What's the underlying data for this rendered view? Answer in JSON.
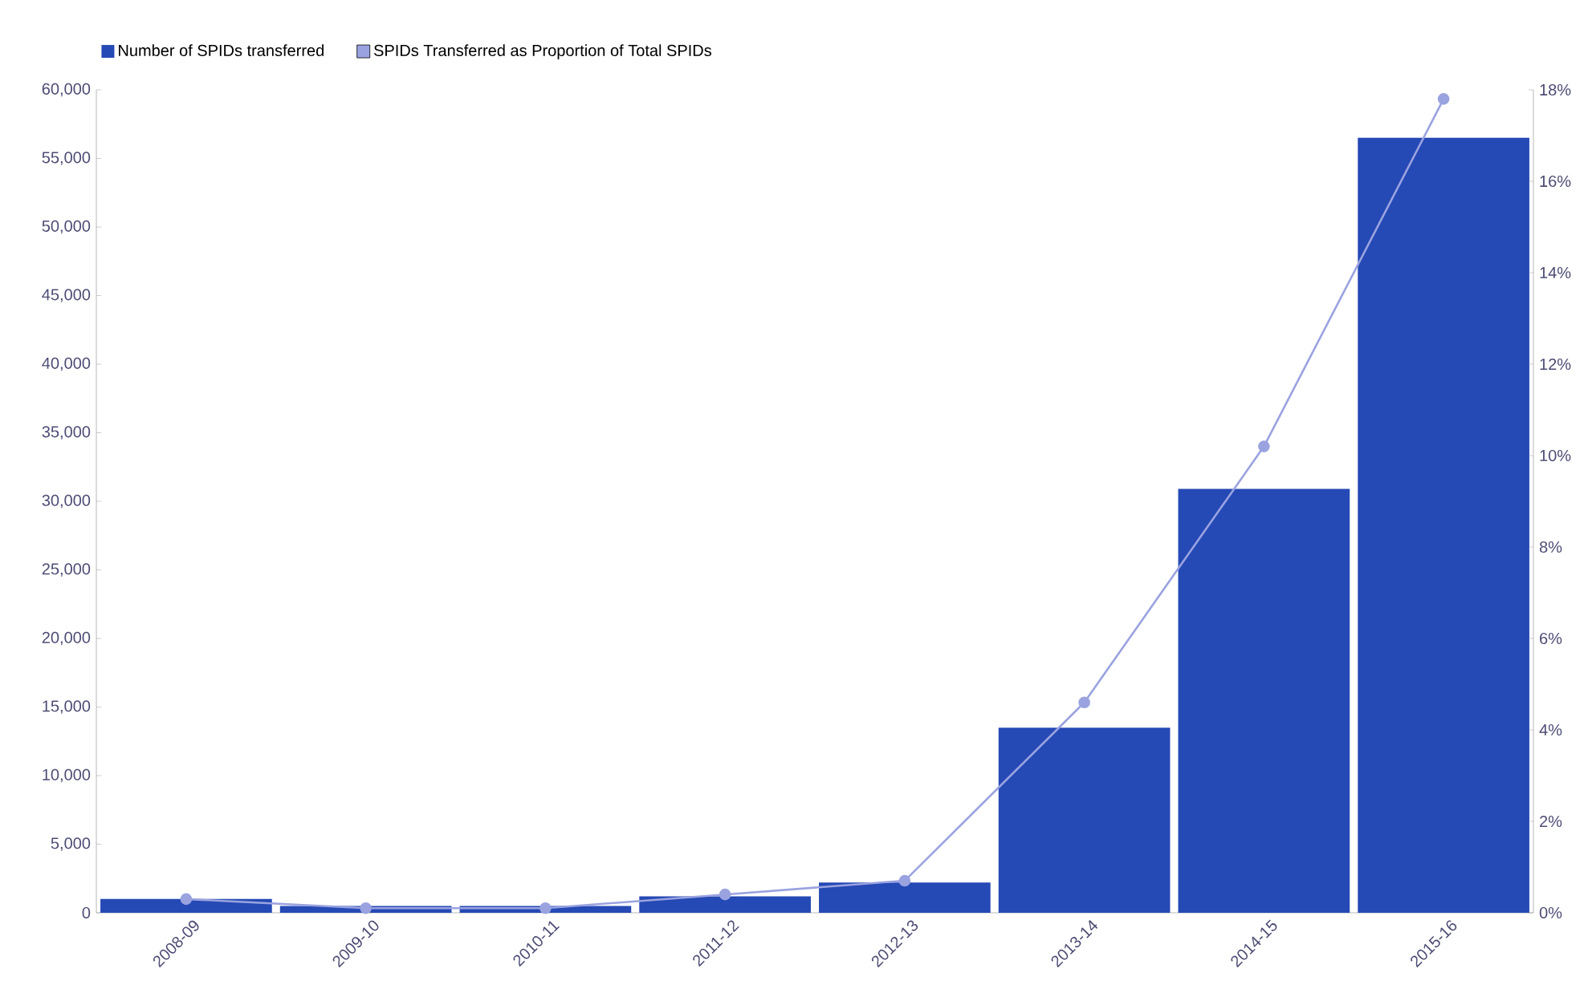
{
  "chart_data": {
    "type": "bar",
    "categories": [
      "2008-09",
      "2009-10",
      "2010-11",
      "2011-12",
      "2012-13",
      "2013-14",
      "2014-15",
      "2015-16"
    ],
    "series": [
      {
        "name": "Number of SPIDs transferred",
        "color": "#2549b5",
        "values": [
          1000,
          500,
          500,
          1200,
          2200,
          13500,
          30900,
          56500
        ]
      },
      {
        "name": "SPIDs Transferred as Proportion of Total SPIDs",
        "color": "#9aa3e0",
        "type": "line",
        "axis": "y2",
        "marker": "circle",
        "values": [
          0.3,
          0.1,
          0.1,
          0.4,
          0.7,
          4.6,
          10.2,
          17.8
        ]
      }
    ],
    "ylim": [
      0,
      60000
    ],
    "yticks": [
      {
        "value": 0,
        "label": "0"
      },
      {
        "value": 5000,
        "label": "5,000"
      },
      {
        "value": 10000,
        "label": "10,000"
      },
      {
        "value": 15000,
        "label": "15,000"
      },
      {
        "value": 20000,
        "label": "20,000"
      },
      {
        "value": 25000,
        "label": "25,000"
      },
      {
        "value": 30000,
        "label": "30,000"
      },
      {
        "value": 35000,
        "label": "35,000"
      },
      {
        "value": 40000,
        "label": "40,000"
      },
      {
        "value": 45000,
        "label": "45,000"
      },
      {
        "value": 50000,
        "label": "50,000"
      },
      {
        "value": 55000,
        "label": "55,000"
      },
      {
        "value": 60000,
        "label": "60,000"
      }
    ],
    "y2lim": [
      0,
      18
    ],
    "y2ticks": [
      {
        "value": 0,
        "label": "0%"
      },
      {
        "value": 2,
        "label": "2%"
      },
      {
        "value": 4,
        "label": "4%"
      },
      {
        "value": 6,
        "label": "6%"
      },
      {
        "value": 8,
        "label": "8%"
      },
      {
        "value": 10,
        "label": "10%"
      },
      {
        "value": 12,
        "label": "12%"
      },
      {
        "value": 14,
        "label": "14%"
      },
      {
        "value": 16,
        "label": "16%"
      },
      {
        "value": 18,
        "label": "18%"
      }
    ],
    "grid": false,
    "legend": "top left"
  }
}
